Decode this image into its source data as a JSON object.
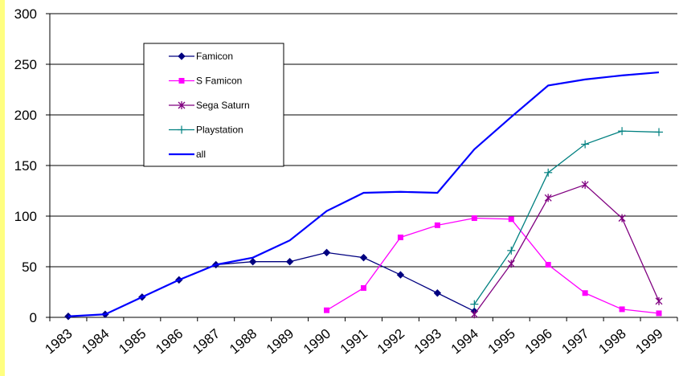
{
  "chart_data": {
    "type": "line",
    "title": "",
    "xlabel": "",
    "ylabel": "",
    "ylim": [
      0,
      300
    ],
    "yticks": [
      0,
      50,
      100,
      150,
      200,
      250,
      300
    ],
    "categories": [
      "1983",
      "1984",
      "1985",
      "1986",
      "1987",
      "1988",
      "1989",
      "1990",
      "1991",
      "1992",
      "1993",
      "1994",
      "1995",
      "1996",
      "1997",
      "1998",
      "1999"
    ],
    "grid": "horizontal",
    "legend_position": "upper-left inside plot",
    "series": [
      {
        "name": "Famicon",
        "color": "#000080",
        "marker": "diamond",
        "values": [
          1,
          3,
          20,
          37,
          52,
          55,
          55,
          64,
          59,
          42,
          24,
          6,
          null,
          null,
          null,
          null,
          null
        ]
      },
      {
        "name": "S Famicon",
        "color": "#ff00ff",
        "marker": "square",
        "values": [
          null,
          null,
          null,
          null,
          null,
          null,
          null,
          7,
          29,
          79,
          91,
          98,
          97,
          52,
          24,
          8,
          4
        ]
      },
      {
        "name": "Sega Saturn",
        "color": "#800080",
        "marker": "star",
        "values": [
          null,
          null,
          null,
          null,
          null,
          null,
          null,
          null,
          null,
          null,
          null,
          3,
          53,
          118,
          131,
          98,
          16
        ]
      },
      {
        "name": "Playstation",
        "color": "#008080",
        "marker": "plus",
        "values": [
          null,
          null,
          null,
          null,
          null,
          null,
          null,
          null,
          null,
          null,
          null,
          13,
          66,
          143,
          171,
          184,
          183
        ]
      },
      {
        "name": "all",
        "color": "#0000ff",
        "marker": "none",
        "values": [
          1,
          3,
          20,
          37,
          52,
          59,
          76,
          105,
          123,
          124,
          123,
          166,
          198,
          229,
          235,
          239,
          242
        ]
      }
    ]
  }
}
